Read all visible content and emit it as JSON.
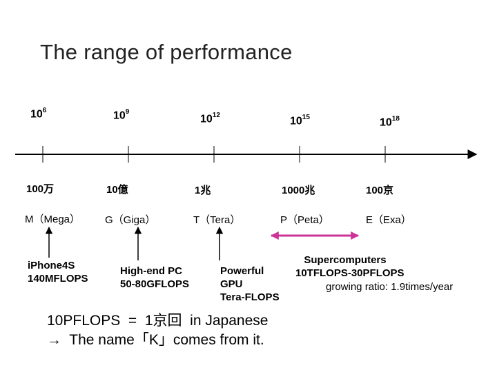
{
  "title": "The range of performance",
  "scale": [
    {
      "base": "10",
      "exp": "6",
      "japanese": "100万",
      "si": "M（Mega）"
    },
    {
      "base": "10",
      "exp": "9",
      "japanese": "10億",
      "si": "G（Giga）"
    },
    {
      "base": "10",
      "exp": "12",
      "japanese": "1兆",
      "si": "T（Tera）"
    },
    {
      "base": "10",
      "exp": "15",
      "japanese": "1000兆",
      "si": "P（Peta）"
    },
    {
      "base": "10",
      "exp": "18",
      "japanese": "100京",
      "si": "E（Exa）"
    }
  ],
  "annotations": {
    "iphone": "iPhone4S\n140MFLOPS",
    "highend_pc": "High-end PC\n50-80GFLOPS",
    "gpu": "Powerful\nGPU\nTera-FLOPS",
    "supercomputers_title": "Supercomputers\n10TFLOPS-30PFLOPS",
    "supercomputers_ratio": "growing ratio: 1.9times/year"
  },
  "footnote": {
    "line1": "10PFLOPS  =  1京回  in Japanese",
    "line2": "→  The name「K」comes from it."
  },
  "colors": {
    "axis": "#000000",
    "range_arrow": "#cc3399"
  }
}
